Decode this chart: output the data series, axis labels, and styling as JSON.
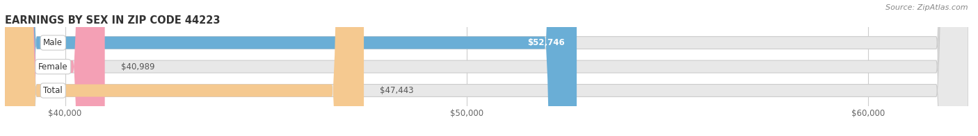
{
  "title": "EARNINGS BY SEX IN ZIP CODE 44223",
  "source": "Source: ZipAtlas.com",
  "categories": [
    "Male",
    "Female",
    "Total"
  ],
  "values": [
    52746,
    40989,
    47443
  ],
  "bar_colors": [
    "#6aaed6",
    "#f4a0b5",
    "#f5c990"
  ],
  "bar_bg_color": "#e8e8e8",
  "xmin": 38500,
  "xmax": 62500,
  "xticks": [
    40000,
    50000,
    60000
  ],
  "xtick_labels": [
    "$40,000",
    "$50,000",
    "$60,000"
  ],
  "value_label_color_outside": "#555555",
  "value_label_color_inside": "#ffffff",
  "title_color": "#333333",
  "title_fontsize": 10.5,
  "source_fontsize": 8,
  "tick_fontsize": 8.5,
  "cat_fontsize": 8.5,
  "val_fontsize": 8.5,
  "fig_bg_color": "#ffffff",
  "bar_height": 0.52,
  "inside_threshold": 50000
}
